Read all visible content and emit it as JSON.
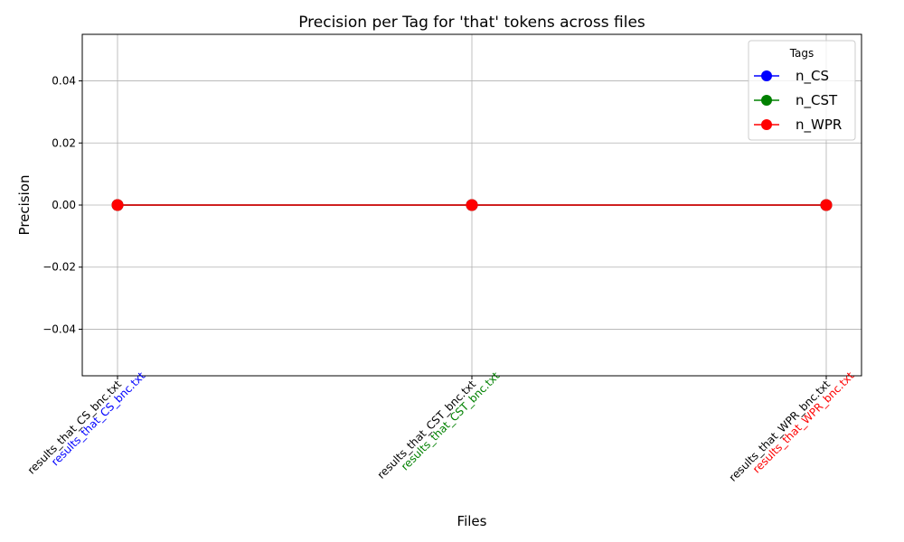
{
  "chart_data": {
    "type": "line",
    "title": "Precision per Tag for 'that' tokens across files",
    "xlabel": "Files",
    "ylabel": "Precision",
    "categories": [
      "results_that_CS_bnc.txt",
      "results_that_CST_bnc.txt",
      "results_that_WPR_bnc.txt"
    ],
    "ylim": [
      -0.055,
      0.055
    ],
    "yticks": [
      "0.04",
      "0.02",
      "0.00",
      "−0.02",
      "−0.04"
    ],
    "ytick_values": [
      0.04,
      0.02,
      0.0,
      -0.02,
      -0.04
    ],
    "grid": true,
    "legend_title": "Tags",
    "legend_position": "top-right",
    "series": [
      {
        "name": "n_CS",
        "values": [
          0.0,
          0.0,
          0.0
        ],
        "color": "#0000ff"
      },
      {
        "name": "n_CST",
        "values": [
          0.0,
          0.0,
          0.0
        ],
        "color": "#008000"
      },
      {
        "name": "n_WPR",
        "values": [
          0.0,
          0.0,
          0.0
        ],
        "color": "#ff0000"
      }
    ],
    "colored_annotations": [
      {
        "text": "results_that_CS_bnc.txt",
        "color": "#0000ff"
      },
      {
        "text": "results_that_CST_bnc.txt",
        "color": "#008000"
      },
      {
        "text": "results_that_WPR_bnc.txt",
        "color": "#ff0000"
      }
    ]
  }
}
